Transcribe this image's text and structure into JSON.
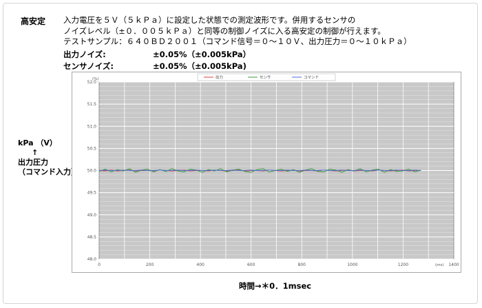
{
  "heading": "高安定",
  "description": [
    "入力電圧を５Ｖ（５ｋＰａ）に設定した状態での測定波形です。併用するセンサの",
    "ノイズレベル（±０．００５ｋＰａ）と同等の制御ノイズに入る高安定の制御が行えます。",
    "テストサンプル：６４０ＢＤ２００１（コマンド信号＝０～１０Ｖ、出力圧力＝０～１０ｋＰａ）"
  ],
  "noise": [
    {
      "label": "出力ノイズ:",
      "value": "±0.05%（±0.005kPa）"
    },
    {
      "label": "センサノイズ:",
      "value": "±0.05%（±0.005kPa)"
    }
  ],
  "y_caption": {
    "unit": "kPa （V）",
    "arrow": "↑",
    "line1": "出力圧力",
    "line2": "（コマンド入力）"
  },
  "x_caption": "時間→＊0．1msec",
  "chart_data": {
    "type": "line",
    "unit_label": "(%)",
    "x_axis_unit": "(ms)",
    "xlim": [
      0,
      1400
    ],
    "ylim": [
      48.0,
      52.0
    ],
    "x_ticks": [
      0,
      200,
      400,
      600,
      800,
      1000,
      1200,
      1400
    ],
    "y_ticks": [
      "52.0",
      "51.5",
      "51.0",
      "50.5",
      "50.0",
      "49.5",
      "49.0",
      "48.5",
      "48.0"
    ],
    "grid": true,
    "legend_position": "top-center",
    "x_end": 1270,
    "series": [
      {
        "name": "出力",
        "color": "#e03c3c",
        "values": [
          50.0,
          49.99,
          50.01,
          49.99,
          50.0,
          50.01,
          49.99,
          50.0,
          50.0,
          49.99,
          50.01,
          50.0,
          49.99,
          50.0,
          50.01,
          49.99,
          50.0,
          50.0,
          49.99,
          50.01,
          50.0,
          49.99,
          50.0,
          50.01,
          49.99,
          50.0,
          50.0,
          49.99,
          50.01,
          50.0,
          49.99,
          50.0,
          50.01,
          49.99,
          50.0,
          50.0,
          49.99,
          50.01,
          50.0,
          49.99,
          50.0,
          50.01,
          49.99,
          50.0,
          50.0,
          49.99,
          50.01,
          50.0,
          49.99,
          50.0,
          50.01,
          49.99,
          50.0,
          50.0
        ]
      },
      {
        "name": "センサ",
        "color": "#3a9a3a",
        "values": [
          49.98,
          50.03,
          49.97,
          50.02,
          49.99,
          50.04,
          49.96,
          50.01,
          50.03,
          49.97,
          50.02,
          49.98,
          50.04,
          49.99,
          49.97,
          50.03,
          50.01,
          49.96,
          50.02,
          49.99,
          50.04,
          49.97,
          50.01,
          50.03,
          49.98,
          49.96,
          50.02,
          50.04,
          49.97,
          50.0,
          50.03,
          49.98,
          50.02,
          49.96,
          50.01,
          50.04,
          49.98,
          49.97,
          50.03,
          50.01,
          49.96,
          50.02,
          49.99,
          50.04,
          49.97,
          50.01,
          50.03,
          49.96,
          50.02,
          49.98,
          49.99,
          50.03,
          49.97,
          50.01
        ]
      },
      {
        "name": "コマンド",
        "color": "#4a6fd8",
        "values": [
          50.0,
          50.01,
          50.0,
          50.0,
          50.01,
          50.0,
          50.0,
          50.01,
          50.0,
          50.0,
          50.01,
          50.0,
          50.0,
          50.01,
          50.0,
          50.0,
          50.01,
          50.0,
          50.0,
          50.01,
          50.0,
          50.0,
          50.01,
          50.0,
          50.0,
          50.01,
          50.0,
          50.0,
          50.01,
          50.0,
          50.0,
          50.01,
          50.0,
          50.0,
          50.01,
          50.0,
          50.0,
          50.01,
          50.0,
          50.0,
          50.01,
          50.0,
          50.0,
          50.01,
          50.0,
          50.0,
          50.01,
          50.0,
          50.0,
          50.01,
          50.0,
          50.0,
          50.01,
          50.0
        ]
      }
    ]
  }
}
